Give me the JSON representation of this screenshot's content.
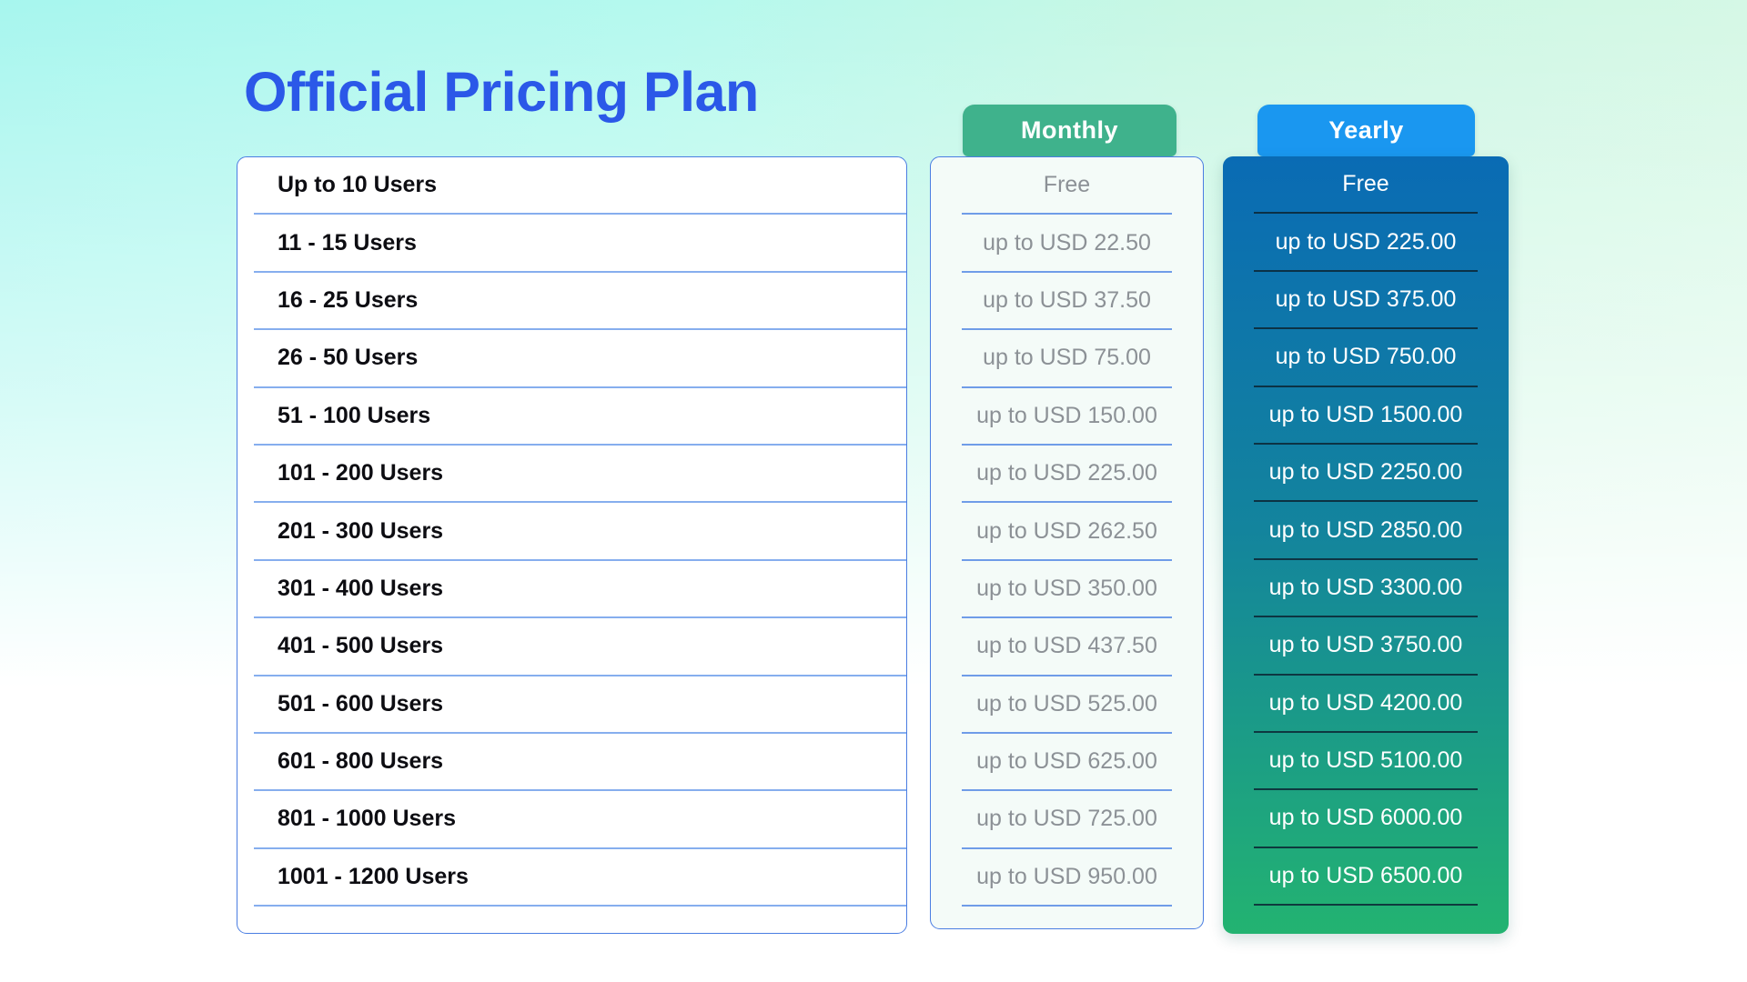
{
  "header": {
    "title": "Official Pricing Plan"
  },
  "tabs": {
    "monthly": "Monthly",
    "yearly": "Yearly"
  },
  "pricing": {
    "tiers": [
      "Up to 10 Users",
      "11 - 15 Users",
      "16 - 25 Users",
      "26 - 50 Users",
      "51 - 100 Users",
      "101 - 200 Users",
      "201 - 300 Users",
      "301 - 400 Users",
      "401 - 500 Users",
      "501 - 600 Users",
      "601 - 800 Users",
      "801 - 1000 Users",
      "1001 - 1200 Users"
    ],
    "monthly": [
      "Free",
      "up to USD 22.50",
      "up to USD 37.50",
      "up to USD 75.00",
      "up to USD 150.00",
      "up to USD 225.00",
      "up to USD 262.50",
      "up to USD 350.00",
      "up to USD 437.50",
      "up to USD 525.00",
      "up to USD 625.00",
      "up to USD 725.00",
      "up to USD 950.00"
    ],
    "yearly": [
      "Free",
      "up to USD 225.00",
      "up to USD 375.00",
      "up to USD 750.00",
      "up to USD 1500.00",
      "up to USD 2250.00",
      "up to USD 2850.00",
      "up to USD 3300.00",
      "up to USD 3750.00",
      "up to USD 4200.00",
      "up to USD 5100.00",
      "up to USD 6000.00",
      "up to USD 6500.00"
    ]
  },
  "colors": {
    "title_blue": "#2b58e8",
    "monthly_tab_green": "#3fb28c",
    "yearly_tab_blue": "#1a97f0",
    "yearly_gradient_top": "#0a6bb4",
    "yearly_gradient_bottom": "#23b371",
    "card_border_blue": "#4a7de2",
    "separator_light_blue": "#86aeee",
    "separator_dark_navy": "#0c2634",
    "background_cyan": "#a7f6ee",
    "background_mint": "#d9f8e6"
  },
  "chart_data": {
    "type": "table",
    "title": "Official Pricing Plan",
    "columns": [
      "Users",
      "Monthly",
      "Yearly"
    ],
    "rows": [
      [
        "Up to 10 Users",
        "Free",
        "Free"
      ],
      [
        "11 - 15 Users",
        "up to USD 22.50",
        "up to USD 225.00"
      ],
      [
        "16 - 25 Users",
        "up to USD 37.50",
        "up to USD 375.00"
      ],
      [
        "26 - 50 Users",
        "up to USD 75.00",
        "up to USD 750.00"
      ],
      [
        "51 - 100 Users",
        "up to USD 150.00",
        "up to USD 1500.00"
      ],
      [
        "101 - 200 Users",
        "up to USD 225.00",
        "up to USD 2250.00"
      ],
      [
        "201 - 300 Users",
        "up to USD 262.50",
        "up to USD 2850.00"
      ],
      [
        "301 - 400 Users",
        "up to USD 350.00",
        "up to USD 3300.00"
      ],
      [
        "401 - 500 Users",
        "up to USD 437.50",
        "up to USD 3750.00"
      ],
      [
        "501 - 600 Users",
        "up to USD 525.00",
        "up to USD 4200.00"
      ],
      [
        "601 - 800 Users",
        "up to USD 625.00",
        "up to USD 5100.00"
      ],
      [
        "801 - 1000 Users",
        "up to USD 725.00",
        "up to USD 6000.00"
      ],
      [
        "1001 - 1200 Users",
        "up to USD 950.00",
        "up to USD 6500.00"
      ]
    ]
  }
}
